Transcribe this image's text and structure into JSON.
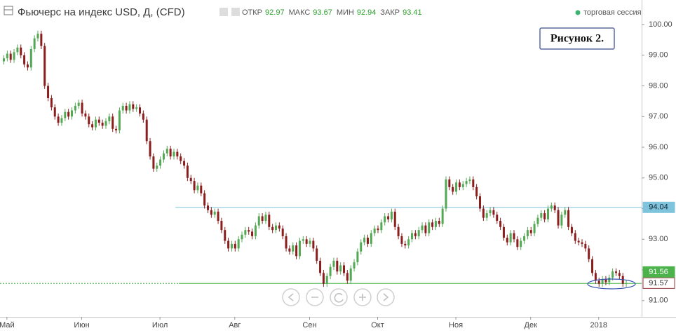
{
  "header": {
    "symbol": "Фьючерс на индекс USD, Д, (CFD)",
    "fields": [
      {
        "label": "ОТКР",
        "value": 92.97
      },
      {
        "label": "МАКС",
        "value": 93.67
      },
      {
        "label": "МИН",
        "value": 92.94
      },
      {
        "label": "ЗАКР",
        "value": 93.41
      }
    ],
    "session": "торговая сессия"
  },
  "chart_data": {
    "type": "candlestick",
    "annotation": "Рисунок 2.",
    "up_color": "#53a853",
    "down_color": "#8b1d1d",
    "ylim": [
      90.47,
      100.8
    ],
    "yticks": [
      {
        "value": 91,
        "label": "91.00"
      },
      {
        "value": 92,
        "label": "92.00"
      },
      {
        "value": 93,
        "label": "93.00"
      },
      {
        "value": 94,
        "label": "94.00"
      },
      {
        "value": 95,
        "label": "95.00"
      },
      {
        "value": 96,
        "label": "96.00"
      },
      {
        "value": 97,
        "label": "97.00"
      },
      {
        "value": 98,
        "label": "98.00"
      },
      {
        "value": 99,
        "label": "99.00"
      },
      {
        "value": 100,
        "label": "100.00"
      }
    ],
    "grid": false,
    "price_lines": [
      {
        "value": 94.04,
        "color": "#7fc4dc"
      },
      {
        "value": 91.57,
        "color": "#9a3a3a"
      },
      {
        "value": 91.56,
        "color": "#4cb34c"
      }
    ],
    "categories": [
      null,
      "Май",
      null,
      null,
      null,
      null,
      null,
      null,
      null,
      null,
      null,
      null,
      null,
      null,
      null,
      null,
      null,
      null,
      null,
      null,
      null,
      null,
      null,
      "Июн",
      null,
      null,
      null,
      null,
      null,
      null,
      null,
      null,
      null,
      null,
      null,
      null,
      null,
      null,
      null,
      null,
      null,
      null,
      null,
      null,
      null,
      null,
      "Июл",
      null,
      null,
      null,
      null,
      null,
      null,
      null,
      null,
      null,
      null,
      null,
      null,
      null,
      null,
      null,
      null,
      null,
      null,
      null,
      null,
      null,
      "Авг",
      null,
      null,
      null,
      null,
      null,
      null,
      null,
      null,
      null,
      null,
      null,
      null,
      null,
      null,
      null,
      null,
      null,
      null,
      null,
      null,
      null,
      "Сен",
      null,
      null,
      null,
      null,
      null,
      null,
      null,
      null,
      null,
      null,
      null,
      null,
      null,
      null,
      null,
      null,
      null,
      null,
      null,
      "Окт",
      null,
      null,
      null,
      null,
      null,
      null,
      null,
      null,
      null,
      null,
      null,
      null,
      null,
      null,
      null,
      null,
      null,
      null,
      null,
      null,
      null,
      null,
      "Ноя",
      null,
      null,
      null,
      null,
      null,
      null,
      null,
      null,
      null,
      null,
      null,
      null,
      null,
      null,
      null,
      null,
      null,
      null,
      null,
      null,
      null,
      "Дек",
      null,
      null,
      null,
      null,
      null,
      null,
      null,
      null,
      null,
      null,
      null,
      null,
      null,
      null,
      null,
      null,
      null,
      null,
      null,
      "2018",
      null,
      null,
      null,
      null,
      null,
      null,
      null,
      null
    ],
    "open": [
      98.8,
      98.9,
      99.05,
      98.85,
      99.1,
      99.25,
      99,
      98.7,
      98.6,
      99.2,
      99.55,
      99.7,
      99.3,
      98,
      97.6,
      97.3,
      97,
      96.8,
      96.95,
      97.15,
      97,
      97.2,
      97.35,
      97.45,
      97.1,
      97,
      96.75,
      96.65,
      96.9,
      96.8,
      96.7,
      96.85,
      97,
      96.6,
      96.55,
      97.2,
      97.35,
      97.2,
      97.4,
      97.25,
      97.3,
      97.1,
      96.9,
      96.2,
      95.7,
      95.3,
      95.4,
      95.6,
      95.8,
      95.95,
      95.7,
      95.85,
      95.7,
      95.55,
      95.4,
      95,
      94.9,
      94.6,
      94.75,
      94.5,
      94.1,
      93.95,
      93.8,
      93.9,
      93.6,
      93.3,
      92.95,
      92.7,
      92.85,
      92.7,
      93,
      93.15,
      93.3,
      93.25,
      93.1,
      93.45,
      93.75,
      93.6,
      93.8,
      93.4,
      93.3,
      93.45,
      93.35,
      93.1,
      92.7,
      92.6,
      92.8,
      92.45,
      92.95,
      93,
      92.85,
      92.95,
      92.7,
      92.3,
      91.9,
      91.55,
      91.8,
      92.1,
      92.3,
      91.95,
      92.15,
      91.9,
      91.65,
      92.05,
      92.25,
      92.6,
      92.9,
      93.05,
      92.85,
      93.2,
      93.35,
      93.3,
      93.55,
      93.75,
      93.65,
      93.9,
      93.4,
      93.1,
      92.85,
      92.8,
      93,
      93.2,
      93.1,
      93.3,
      93.45,
      93.2,
      93.55,
      93.4,
      93.6,
      93.5,
      94,
      94.95,
      94.7,
      94.55,
      94.85,
      94.7,
      94.8,
      94.9,
      94.95,
      94.7,
      94.4,
      94,
      93.7,
      93.85,
      93.95,
      93.8,
      93.6,
      93.4,
      93.05,
      92.9,
      93.2,
      93,
      92.75,
      92.95,
      93.1,
      93.3,
      93.2,
      93.5,
      93.7,
      93.85,
      93.65,
      94,
      94.1,
      93.95,
      93.45,
      93.8,
      93.95,
      93.4,
      93.2,
      92.95,
      92.9,
      92.85,
      92.7,
      92.35,
      91.9,
      91.65,
      91.55,
      91.7,
      91.6,
      91.75,
      91.95,
      91.9,
      91.8,
      91.55
    ],
    "high": [
      99,
      99.15,
      99.15,
      99.2,
      99.35,
      99.35,
      99.1,
      98.8,
      99.3,
      99.65,
      99.8,
      99.8,
      99.4,
      98.1,
      97.7,
      97.4,
      97.1,
      97.05,
      97.25,
      97.25,
      97.3,
      97.45,
      97.55,
      97.55,
      97.2,
      97.1,
      96.85,
      97,
      97,
      96.9,
      96.95,
      97.1,
      97.1,
      96.7,
      97.3,
      97.45,
      97.45,
      97.5,
      97.5,
      97.4,
      97.4,
      97.2,
      97,
      96.3,
      95.8,
      95.5,
      95.7,
      95.9,
      96.05,
      96.05,
      95.95,
      95.95,
      95.8,
      95.65,
      95.5,
      95.1,
      95,
      94.85,
      94.85,
      94.6,
      94.2,
      94.05,
      94,
      94,
      93.7,
      93.4,
      93.05,
      92.95,
      92.95,
      93.1,
      93.25,
      93.4,
      93.4,
      93.35,
      93.55,
      93.85,
      93.85,
      93.9,
      93.9,
      93.5,
      93.55,
      93.55,
      93.45,
      93.2,
      92.8,
      92.9,
      92.9,
      93.05,
      93.1,
      93.1,
      93.05,
      93.05,
      92.8,
      92.4,
      92,
      91.9,
      92.2,
      92.4,
      92.4,
      92.25,
      92.25,
      92,
      92.15,
      92.35,
      92.7,
      93,
      93.15,
      93.15,
      93.3,
      93.45,
      93.45,
      93.65,
      93.85,
      93.85,
      94,
      94,
      93.5,
      93.2,
      92.95,
      93.1,
      93.3,
      93.3,
      93.4,
      93.55,
      93.55,
      93.65,
      93.65,
      93.7,
      93.7,
      94.1,
      95.05,
      95.05,
      94.8,
      94.95,
      94.95,
      94.9,
      95,
      95.05,
      95.05,
      94.8,
      94.5,
      94.1,
      93.95,
      94.05,
      94.05,
      93.9,
      93.7,
      93.5,
      93.15,
      93.3,
      93.3,
      93.1,
      93.05,
      93.2,
      93.4,
      93.4,
      93.6,
      93.8,
      93.95,
      93.95,
      94.1,
      94.2,
      94.2,
      94.05,
      93.9,
      94.05,
      94.05,
      93.5,
      93.3,
      93.05,
      93,
      92.95,
      92.8,
      92.45,
      92,
      91.75,
      91.8,
      91.8,
      91.85,
      92.05,
      92.05,
      92,
      91.9,
      91.67
    ],
    "low": [
      98.7,
      98.8,
      98.75,
      98.75,
      99,
      98.9,
      98.6,
      98.5,
      98.5,
      99.1,
      99.45,
      99.2,
      97.9,
      97.5,
      97.2,
      96.9,
      96.7,
      96.7,
      96.85,
      96.9,
      96.9,
      97.1,
      97.25,
      97,
      96.9,
      96.65,
      96.55,
      96.55,
      96.7,
      96.6,
      96.6,
      96.75,
      96.5,
      96.45,
      96.45,
      97.1,
      97.1,
      97.1,
      97.15,
      97.15,
      97,
      96.8,
      96.1,
      95.6,
      95.2,
      95.2,
      95.3,
      95.5,
      95.7,
      95.6,
      95.6,
      95.6,
      95.45,
      95.3,
      94.9,
      94.8,
      94.5,
      94.5,
      94.4,
      94,
      93.85,
      93.7,
      93.7,
      93.5,
      93.2,
      92.85,
      92.6,
      92.6,
      92.6,
      92.6,
      92.9,
      93.05,
      93.15,
      93,
      93,
      93.35,
      93.5,
      93.5,
      93.3,
      93.2,
      93.2,
      93.25,
      93,
      92.6,
      92.5,
      92.5,
      92.35,
      92.35,
      92.85,
      92.75,
      92.75,
      92.6,
      92.2,
      91.8,
      91.45,
      91.45,
      91.7,
      92,
      91.85,
      91.85,
      91.8,
      91.55,
      91.55,
      91.95,
      92.15,
      92.5,
      92.8,
      92.75,
      92.75,
      93.1,
      93.2,
      93.2,
      93.45,
      93.55,
      93.55,
      93.3,
      93,
      92.75,
      92.7,
      92.7,
      92.9,
      93,
      93,
      93.2,
      93.1,
      93.1,
      93.3,
      93.3,
      93.4,
      93.4,
      93.9,
      94.6,
      94.45,
      94.45,
      94.6,
      94.6,
      94.7,
      94.8,
      94.6,
      94.3,
      93.9,
      93.6,
      93.6,
      93.75,
      93.7,
      93.5,
      93.3,
      92.95,
      92.8,
      92.8,
      92.9,
      92.65,
      92.65,
      92.85,
      93,
      93.1,
      93.1,
      93.4,
      93.6,
      93.55,
      93.55,
      93.9,
      93.85,
      93.35,
      93.35,
      93.7,
      93.3,
      93.1,
      92.85,
      92.8,
      92.75,
      92.6,
      92.25,
      91.8,
      91.55,
      91.45,
      91.45,
      91.5,
      91.5,
      91.65,
      91.8,
      91.7,
      91.45,
      91.45
    ],
    "close": [
      98.9,
      99.05,
      98.85,
      99.1,
      99.25,
      99,
      98.7,
      98.6,
      99.2,
      99.55,
      99.7,
      99.3,
      98,
      97.6,
      97.3,
      97,
      96.8,
      96.95,
      97.15,
      97,
      97.2,
      97.35,
      97.45,
      97.1,
      97,
      96.75,
      96.65,
      96.9,
      96.8,
      96.7,
      96.85,
      97,
      96.6,
      96.55,
      97.2,
      97.35,
      97.2,
      97.4,
      97.25,
      97.3,
      97.1,
      96.9,
      96.2,
      95.7,
      95.3,
      95.4,
      95.6,
      95.8,
      95.95,
      95.7,
      95.85,
      95.7,
      95.55,
      95.4,
      95,
      94.9,
      94.6,
      94.75,
      94.5,
      94.1,
      93.95,
      93.8,
      93.9,
      93.6,
      93.3,
      92.95,
      92.7,
      92.85,
      92.7,
      93,
      93.15,
      93.3,
      93.25,
      93.1,
      93.45,
      93.75,
      93.6,
      93.8,
      93.4,
      93.3,
      93.45,
      93.35,
      93.1,
      92.7,
      92.6,
      92.8,
      92.45,
      92.95,
      93,
      92.85,
      92.95,
      92.7,
      92.3,
      91.9,
      91.55,
      91.8,
      92.1,
      92.3,
      91.95,
      92.15,
      91.9,
      91.65,
      92.05,
      92.25,
      92.6,
      92.9,
      93.05,
      92.85,
      93.2,
      93.35,
      93.3,
      93.55,
      93.75,
      93.65,
      93.9,
      93.4,
      93.1,
      92.85,
      92.8,
      93,
      93.2,
      93.1,
      93.3,
      93.45,
      93.2,
      93.55,
      93.4,
      93.6,
      93.5,
      94,
      94.95,
      94.7,
      94.55,
      94.85,
      94.7,
      94.8,
      94.9,
      94.95,
      94.7,
      94.4,
      94,
      93.7,
      93.85,
      93.95,
      93.8,
      93.6,
      93.4,
      93.05,
      92.9,
      93.2,
      93,
      92.75,
      92.95,
      93.1,
      93.3,
      93.2,
      93.5,
      93.7,
      93.85,
      93.65,
      94,
      94.1,
      93.95,
      93.45,
      93.8,
      93.95,
      93.4,
      93.2,
      92.95,
      92.9,
      92.85,
      92.7,
      92.35,
      91.9,
      91.65,
      91.55,
      91.7,
      91.6,
      91.75,
      91.95,
      91.9,
      91.8,
      91.55,
      91.57
    ]
  }
}
